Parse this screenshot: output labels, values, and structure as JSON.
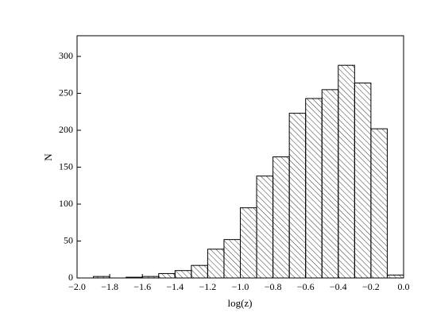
{
  "chart_data": {
    "type": "histogram",
    "x_label": "log(z)",
    "y_label": "N",
    "bins": [
      -1.9,
      -1.8,
      -1.7,
      -1.6,
      -1.5,
      -1.4,
      -1.3,
      -1.2,
      -1.1,
      -1.0,
      -0.9,
      -0.8,
      -0.7,
      -0.6,
      -0.5,
      -0.4,
      -0.3,
      -0.2,
      -0.1,
      0.0
    ],
    "values": [
      2,
      0,
      1,
      2,
      6,
      10,
      17,
      39,
      52,
      95,
      138,
      164,
      223,
      243,
      255,
      288,
      264,
      202,
      4
    ],
    "color": "#000000",
    "xlim": [
      -2.0,
      0.0
    ],
    "xticks": [
      {
        "value": -2.0,
        "label": "−2.0"
      },
      {
        "value": -1.8,
        "label": "−1.8"
      },
      {
        "value": -1.6,
        "label": "−1.6"
      },
      {
        "value": -1.4,
        "label": "−1.4"
      },
      {
        "value": -1.2,
        "label": "−1.2"
      },
      {
        "value": -1.0,
        "label": "−1.0"
      },
      {
        "value": -0.8,
        "label": "−0.8"
      },
      {
        "value": -0.6,
        "label": "−0.6"
      },
      {
        "value": -0.4,
        "label": "−0.4"
      },
      {
        "value": -0.2,
        "label": "−0.2"
      },
      {
        "value": 0.0,
        "label": "0.0"
      }
    ],
    "ylim": [
      0,
      328
    ],
    "yticks": [
      0,
      50,
      100,
      150,
      200,
      250,
      300
    ],
    "grid": false
  }
}
